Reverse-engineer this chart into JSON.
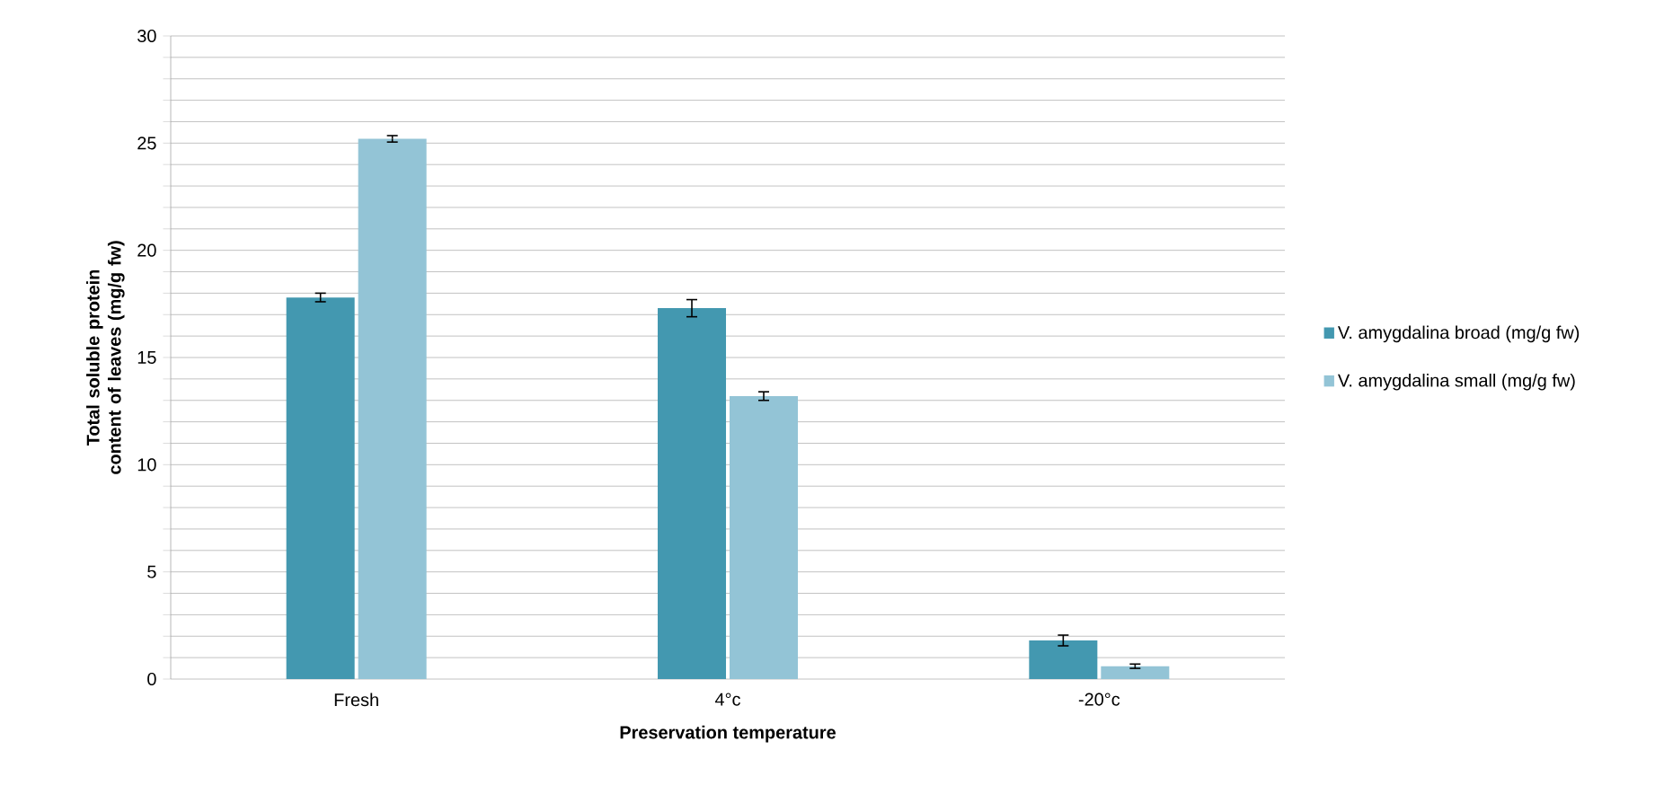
{
  "chart_data": {
    "type": "bar",
    "xlabel": "Preservation temperature",
    "ylabel": "Total soluble protein content of leaves (mg/g fw)",
    "categories": [
      "Fresh",
      "4°c",
      "-20°c"
    ],
    "series": [
      {
        "name": "V. amygdalina broad (mg/g fw)",
        "color": "#4398b0",
        "values": [
          17.8,
          17.3,
          1.8
        ],
        "errors": [
          0.2,
          0.4,
          0.25
        ]
      },
      {
        "name": "V. amygdalina small (mg/g fw)",
        "color": "#93c4d6",
        "values": [
          25.2,
          13.2,
          0.6
        ],
        "errors": [
          0.15,
          0.2,
          0.1
        ]
      }
    ],
    "ylim": [
      0,
      30
    ],
    "yticks": [
      0,
      {
        "value": 1,
        "label": null
      },
      {
        "value": 2,
        "label": null
      },
      {
        "value": 3,
        "label": null
      },
      {
        "value": 4,
        "label": null
      },
      5,
      {
        "value": 6,
        "label": null
      },
      {
        "value": 7,
        "label": null
      },
      {
        "value": 8,
        "label": null
      },
      {
        "value": 9,
        "label": null
      },
      10,
      {
        "value": 11,
        "label": null
      },
      {
        "value": 12,
        "label": null
      },
      {
        "value": 13,
        "label": null
      },
      {
        "value": 14,
        "label": null
      },
      15,
      {
        "value": 16,
        "label": null
      },
      {
        "value": 17,
        "label": null
      },
      {
        "value": 18,
        "label": null
      },
      {
        "value": 19,
        "label": null
      },
      20,
      {
        "value": 21,
        "label": null
      },
      {
        "value": 22,
        "label": null
      },
      {
        "value": 23,
        "label": null
      },
      {
        "value": 24,
        "label": null
      },
      25,
      {
        "value": 26,
        "label": null
      },
      {
        "value": 27,
        "label": null
      },
      {
        "value": 28,
        "label": null
      },
      {
        "value": 29,
        "label": null
      },
      30
    ],
    "grid": "y",
    "legend": "right"
  }
}
